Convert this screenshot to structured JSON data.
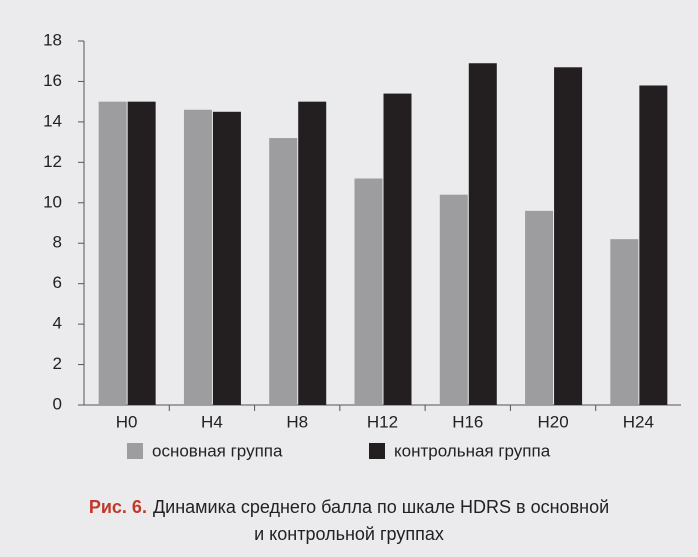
{
  "chart_data": {
    "type": "bar",
    "categories": [
      "H0",
      "H4",
      "H8",
      "H12",
      "H16",
      "H20",
      "H24"
    ],
    "series": [
      {
        "name": "основная группа",
        "color": "#9d9d9f",
        "values": [
          15,
          14.6,
          13.2,
          11.2,
          10.4,
          9.6,
          8.2
        ]
      },
      {
        "name": "контрольная группа",
        "color": "#231f20",
        "values": [
          15,
          14.5,
          15,
          15.4,
          16.9,
          16.7,
          15.8
        ]
      }
    ],
    "ylim": [
      0,
      18
    ],
    "yticks": [
      0,
      2,
      4,
      6,
      8,
      10,
      12,
      14,
      16,
      18
    ],
    "grid": false,
    "legend": "bottom",
    "caption_label": "Рис. 6.",
    "caption": [
      "Динамика среднего балла по шкале HDRS в основной",
      "и контрольной группах"
    ]
  }
}
